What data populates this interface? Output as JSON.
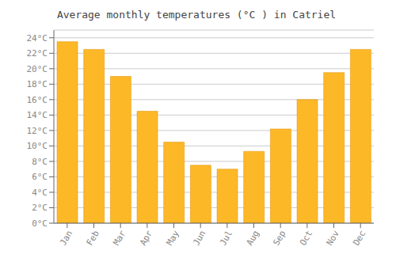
{
  "chart_data": {
    "type": "bar",
    "title": "Average monthly temperatures (°C ) in Catriel",
    "categories": [
      "Jan",
      "Feb",
      "Mar",
      "Apr",
      "May",
      "Jun",
      "Jul",
      "Aug",
      "Sep",
      "Oct",
      "Nov",
      "Dec"
    ],
    "values": [
      23.5,
      22.5,
      19.0,
      14.5,
      10.5,
      7.5,
      7.0,
      9.3,
      12.2,
      16.0,
      19.5,
      22.5
    ],
    "color": "#FDB827",
    "ylim": [
      0,
      25
    ],
    "yticks": [
      {
        "value": 0,
        "label": "0°C"
      },
      {
        "value": 2,
        "label": "2°C"
      },
      {
        "value": 4,
        "label": "4°C"
      },
      {
        "value": 6,
        "label": "6°C"
      },
      {
        "value": 8,
        "label": "8°C"
      },
      {
        "value": 10,
        "label": "10°C"
      },
      {
        "value": 12,
        "label": "12°C"
      },
      {
        "value": 14,
        "label": "14°C"
      },
      {
        "value": 16,
        "label": "16°C"
      },
      {
        "value": 18,
        "label": "18°C"
      },
      {
        "value": 20,
        "label": "20°C"
      },
      {
        "value": 22,
        "label": "22°C"
      },
      {
        "value": 24,
        "label": "24°C"
      }
    ],
    "grid": true
  }
}
